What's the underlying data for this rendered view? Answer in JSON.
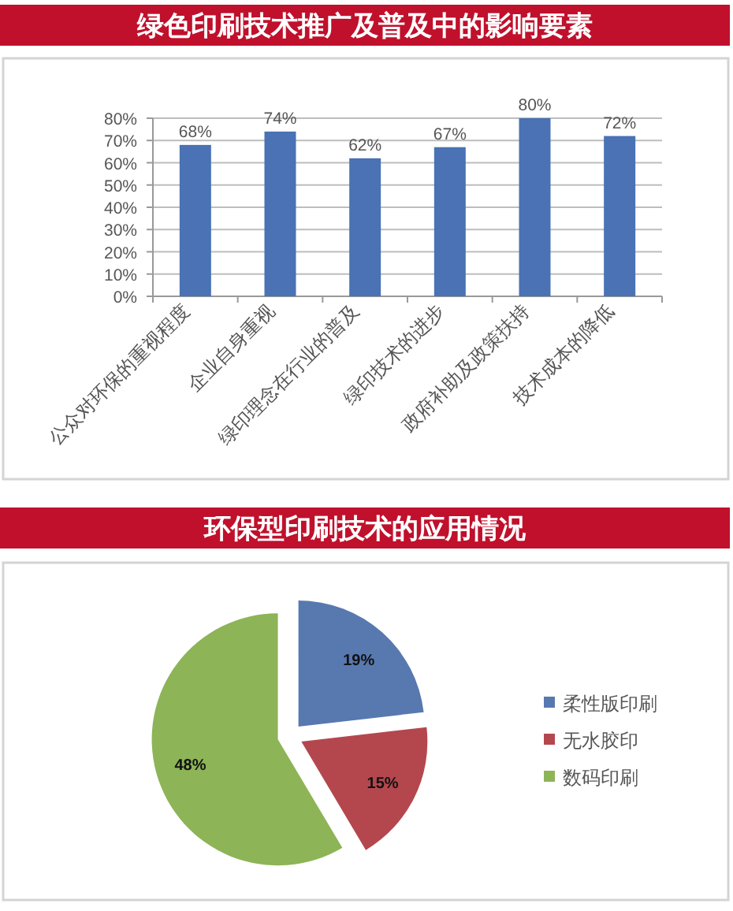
{
  "chart_data": [
    {
      "type": "bar",
      "title": "绿色印刷技术推广及普及中的影响要素",
      "categories": [
        "公众对环保的重视程度",
        "企业自身重视",
        "绿印理念在行业的普及",
        "绿印技术的进步",
        "政府补助及政策扶持",
        "技术成本的降低"
      ],
      "values": [
        68,
        74,
        62,
        67,
        80,
        72
      ],
      "value_labels": [
        "68%",
        "74%",
        "62%",
        "67%",
        "80%",
        "72%"
      ],
      "color": "#4a72b4",
      "ylim": [
        0,
        80
      ],
      "yticks": [
        {
          "value": 0,
          "label": "0%"
        },
        {
          "value": 10,
          "label": "10%"
        },
        {
          "value": 20,
          "label": "20%"
        },
        {
          "value": 30,
          "label": "30%"
        },
        {
          "value": 40,
          "label": "40%"
        },
        {
          "value": 50,
          "label": "50%"
        },
        {
          "value": 60,
          "label": "60%"
        },
        {
          "value": 70,
          "label": "70%"
        },
        {
          "value": 80,
          "label": "80%"
        }
      ],
      "grid": "y"
    },
    {
      "type": "pie",
      "title": "环保型印刷技术的应用情况",
      "categories": [
        "柔性版印刷",
        "无水胶印",
        "数码印刷"
      ],
      "values": [
        19,
        15,
        48
      ],
      "value_labels": [
        "19%",
        "15%",
        "48%"
      ],
      "colors": [
        "#5878b0",
        "#b4474e",
        "#8db457"
      ],
      "legend": "right"
    }
  ]
}
